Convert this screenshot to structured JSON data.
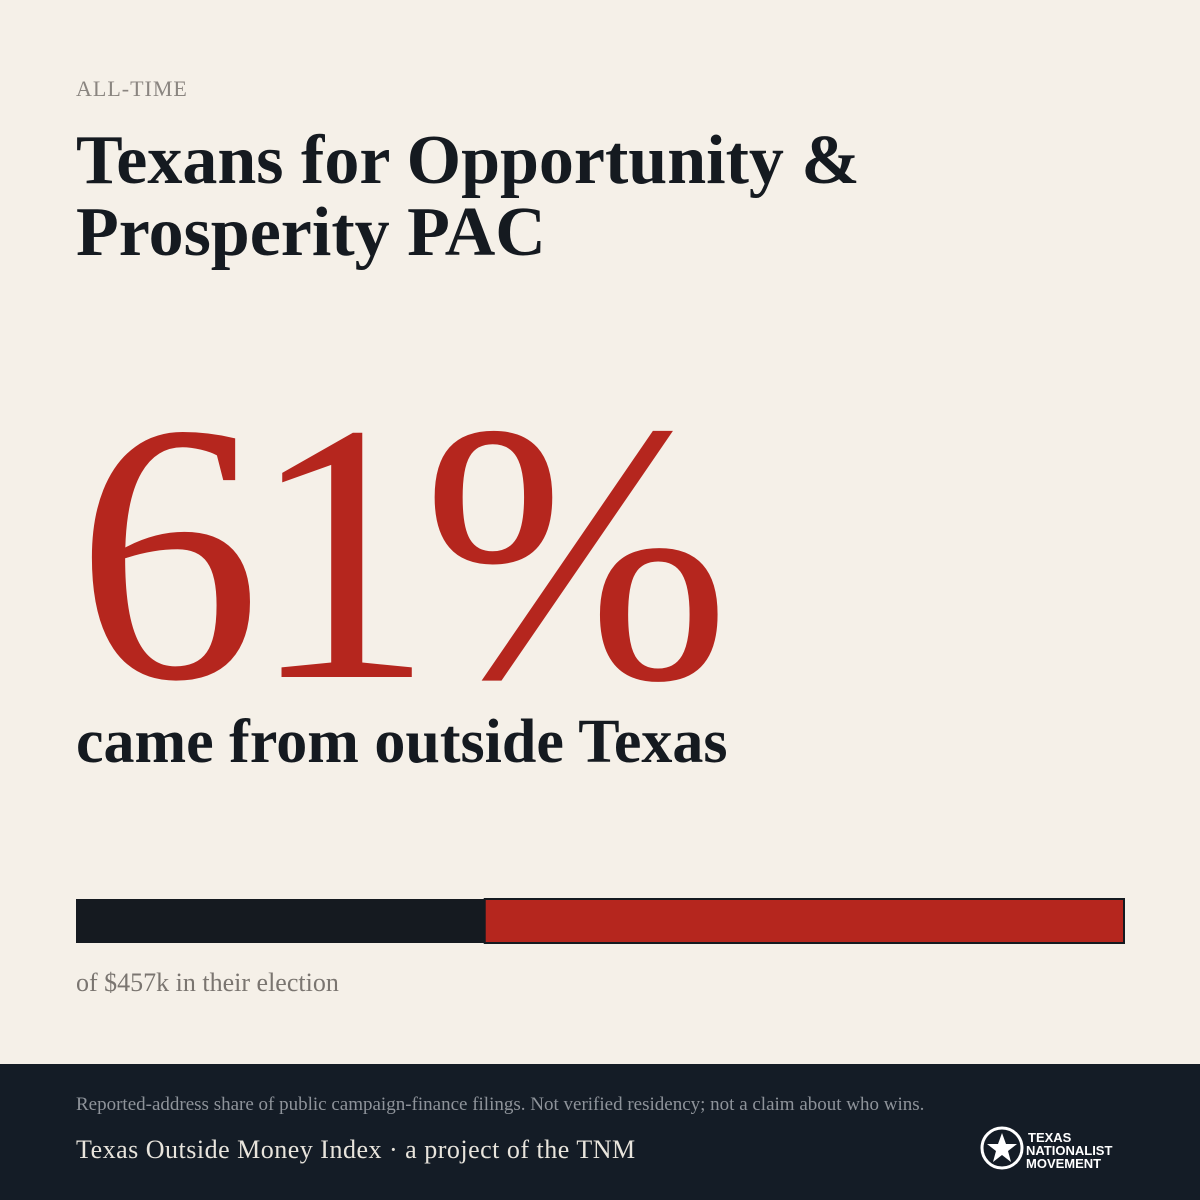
{
  "eyebrow": "ALL-TIME",
  "title": [
    "Texans for Opportunity &",
    "Prosperity PAC"
  ],
  "stat": {
    "value": 61,
    "label": "61%",
    "caption": "came from outside Texas"
  },
  "bar": {
    "xlim": [
      0,
      100
    ],
    "colors": {
      "outside": "#b5261e",
      "rest": "#151a20"
    }
  },
  "total_note": "of $457k in their election",
  "footer": {
    "note": "Reported-address share of public campaign-finance filings. Not verified residency; not a claim about who wins.",
    "credit": "Texas Outside Money Index · a project of the TNM",
    "logo": [
      "TEXAS",
      "NATIONALIST",
      "MOVEMENT"
    ]
  }
}
